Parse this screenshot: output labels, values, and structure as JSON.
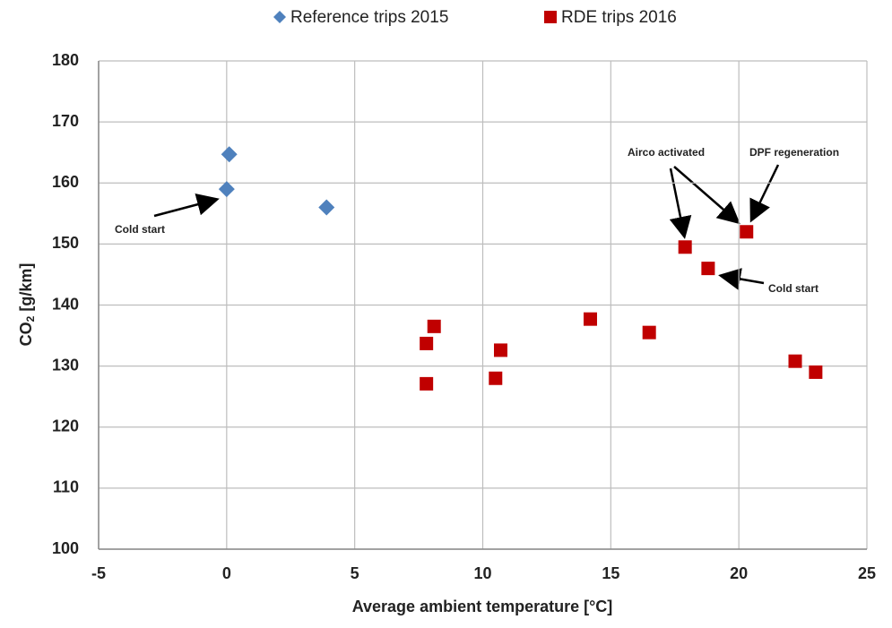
{
  "chart_data": {
    "type": "scatter",
    "x_label": "Average ambient temperature [°C]",
    "y_label": {
      "main": "CO",
      "sub": "2",
      "unit": "[g/km]"
    },
    "xlim": [
      -5,
      25
    ],
    "xticks": [
      -5,
      0,
      5,
      10,
      15,
      20,
      25
    ],
    "ylim": [
      100,
      180
    ],
    "yticks": [
      100,
      110,
      120,
      130,
      140,
      150,
      160,
      170,
      180
    ],
    "grid": true,
    "legend": "top",
    "series": [
      {
        "name": "Reference trips 2015",
        "color": "#4f81bd",
        "marker": "diamond",
        "x": [
          0.1,
          0,
          3.9
        ],
        "values": [
          164.7,
          159,
          156
        ]
      },
      {
        "name": "RDE trips 2016",
        "color": "#c00000",
        "marker": "square",
        "x": [
          7.8,
          8.1,
          7.8,
          10.7,
          10.5,
          14.2,
          16.5,
          17.9,
          18.8,
          20.3,
          22.2,
          23
        ],
        "values": [
          133.7,
          136.5,
          127.1,
          132.6,
          128,
          137.7,
          135.5,
          149.5,
          146,
          152,
          130.8,
          129
        ]
      }
    ],
    "annotations": [
      "Cold start",
      "Airco activated",
      "DPF regeneration",
      "Cold start"
    ]
  }
}
